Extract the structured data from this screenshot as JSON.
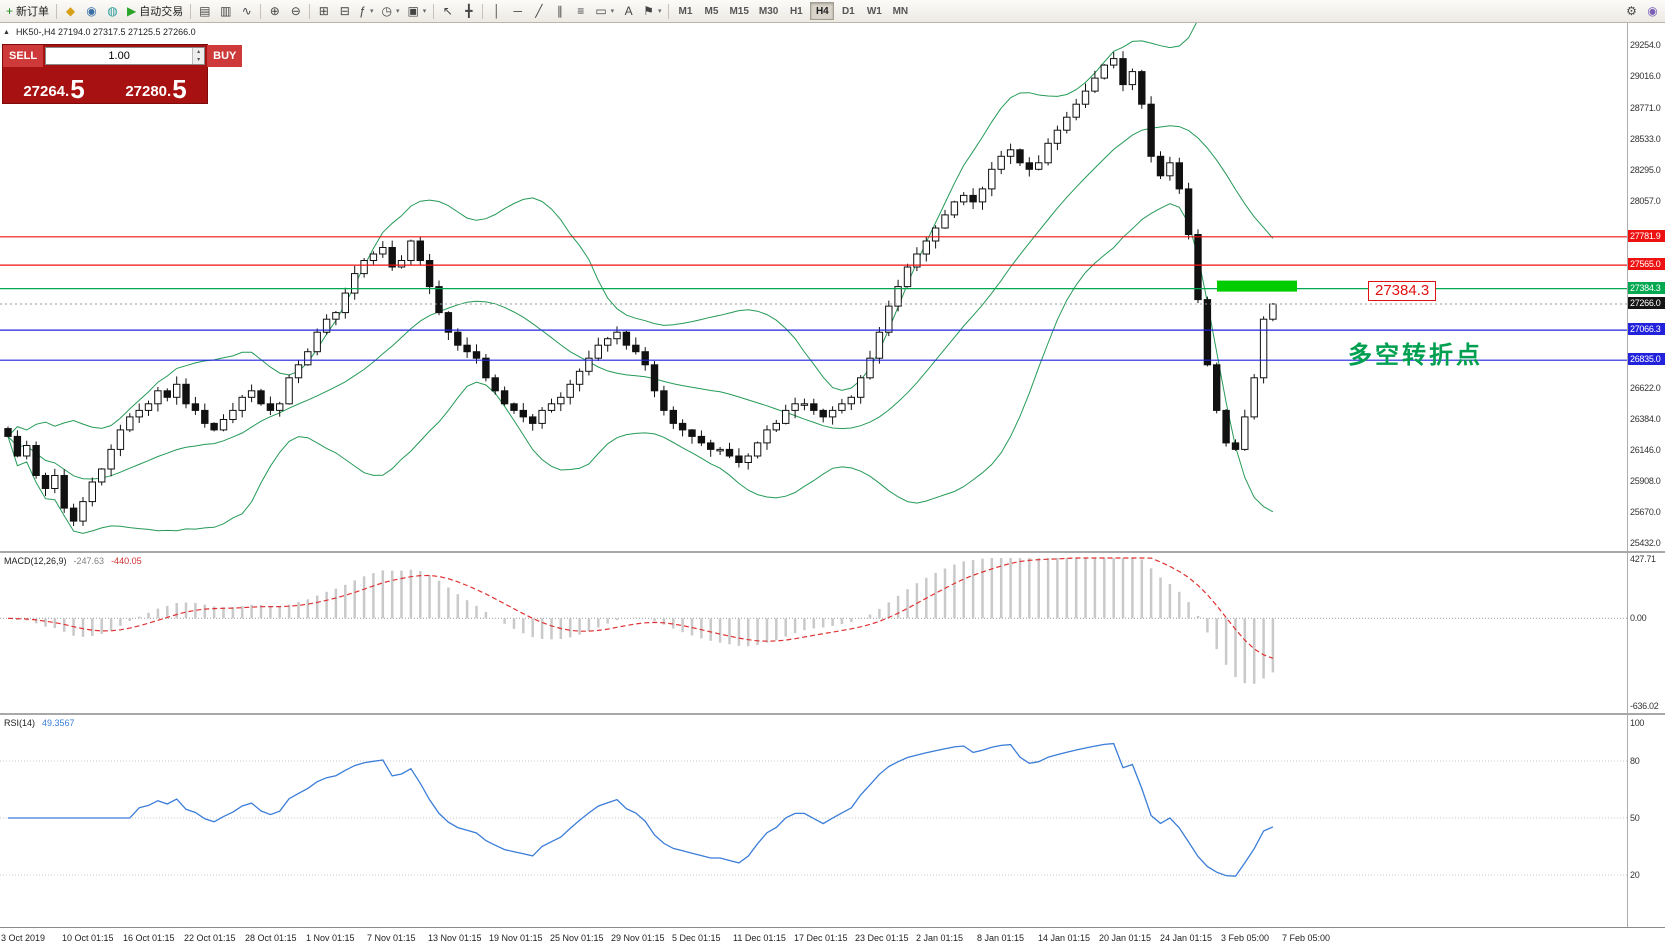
{
  "toolbar": {
    "buttons": [
      {
        "name": "new-order-button",
        "glyph": "+",
        "glyph_color": "#1f8f1f",
        "label": "新订单"
      },
      {
        "sep": true
      },
      {
        "name": "favorites-icon",
        "glyph": "◆",
        "glyph_color": "#d8a019"
      },
      {
        "name": "market-watch-icon",
        "glyph": "◉",
        "glyph_color": "#3a6ea5"
      },
      {
        "name": "data-window-icon",
        "glyph": "◍",
        "glyph_color": "#2a9a9a"
      },
      {
        "name": "auto-trading-button",
        "glyph": "▶",
        "glyph_color": "#2aa52a",
        "label": "自动交易"
      },
      {
        "sep": true
      },
      {
        "name": "bar-chart-button",
        "glyph": "▤"
      },
      {
        "name": "candlestick-chart-button",
        "glyph": "▥"
      },
      {
        "name": "line-chart-button",
        "glyph": "∿"
      },
      {
        "sep": true
      },
      {
        "name": "zoom-in-button",
        "glyph": "⊕"
      },
      {
        "name": "zoom-out-button",
        "glyph": "⊖"
      },
      {
        "sep": true
      },
      {
        "name": "tile-windows-button",
        "glyph": "⊞"
      },
      {
        "name": "auto-scroll-button",
        "glyph": "⊟"
      },
      {
        "name": "indicators-button",
        "glyph": "ƒ",
        "dd": true
      },
      {
        "name": "periods-button",
        "glyph": "◷",
        "dd": true
      },
      {
        "name": "templates-button",
        "glyph": "▣",
        "dd": true
      },
      {
        "sep": true
      },
      {
        "name": "cursor-button",
        "glyph": "↖"
      },
      {
        "name": "crosshair-button",
        "glyph": "╋"
      },
      {
        "sep": true
      },
      {
        "name": "vertical-line-button",
        "glyph": "│"
      },
      {
        "name": "horizontal-line-button",
        "glyph": "─"
      },
      {
        "name": "trendline-button",
        "glyph": "╱"
      },
      {
        "name": "channel-button",
        "glyph": "∥"
      },
      {
        "name": "fibonacci-button",
        "glyph": "≡"
      },
      {
        "name": "shapes-button",
        "glyph": "▭",
        "dd": true
      },
      {
        "name": "text-button",
        "glyph": "A"
      },
      {
        "name": "arrows-button",
        "glyph": "⚑",
        "dd": true
      },
      {
        "sep": true
      }
    ],
    "timeframes": [
      "M1",
      "M5",
      "M15",
      "M30",
      "H1",
      "H4",
      "D1",
      "W1",
      "MN"
    ],
    "active_timeframe": "H4",
    "right_buttons": [
      {
        "name": "settings-button",
        "glyph": "⚙"
      },
      {
        "name": "help-button",
        "glyph": "◉",
        "glyph_color": "#7a5fb5"
      }
    ]
  },
  "chart": {
    "shift_marker": "▲",
    "title_line": "HK50-,H4 27194.0 27317.5 27125.5 27266.0"
  },
  "trade_panel": {
    "sell_label": "SELL",
    "buy_label": "BUY",
    "volume": "1.00",
    "bid_main": "27264.",
    "bid_big": "5",
    "ask_main": "27280.",
    "ask_big": "5"
  },
  "levels": {
    "pivot": 27384.3,
    "current": 27266.0,
    "pivot_label": "27384.3",
    "annotation": "多空转折点",
    "lines": [
      {
        "name": "resistance-1",
        "price": 27781.9,
        "color": "#ee1111"
      },
      {
        "name": "resistance-2",
        "price": 27565.0,
        "color": "#ee1111"
      },
      {
        "name": "pivot-line",
        "price": 27384.3,
        "color": "#00a84f"
      },
      {
        "name": "support-1",
        "price": 27066.3,
        "color": "#2222dd"
      },
      {
        "name": "support-2",
        "price": 26835.0,
        "color": "#2222dd"
      }
    ]
  },
  "axis": {
    "price_ticks": [
      29254.0,
      29016.0,
      28771.0,
      28533.0,
      28295.0,
      28057.0,
      26622.0,
      26384.0,
      26146.0,
      25908.0,
      25670.0,
      25432.0
    ],
    "price_labels": [
      {
        "text": "27781.9",
        "price": 27781.9,
        "color": "#ee1111"
      },
      {
        "text": "27565.0",
        "price": 27565.0,
        "color": "#ee1111"
      },
      {
        "text": "27384.3",
        "price": 27384.3,
        "color": "#00a84f"
      },
      {
        "text": "27266.0",
        "price": 27266.0,
        "color": "#151515"
      },
      {
        "text": "27066.3",
        "price": 27066.3,
        "color": "#2222dd"
      },
      {
        "text": "26835.0",
        "price": 26835.0,
        "color": "#2222dd"
      }
    ],
    "macd_ticks": [
      "427.71",
      "0.00",
      "-636.02"
    ],
    "rsi_ticks": [
      "100",
      "80",
      "50",
      "20"
    ]
  },
  "indicators": {
    "macd_label": "MACD(12,26,9)",
    "macd_value": "-247.63",
    "macd_signal": "-440.05",
    "rsi_label": "RSI(14)",
    "rsi_value": "49.3567"
  },
  "colors": {
    "bollinger": "#259a57",
    "macd_hist": "#c9c9c9",
    "macd_signal": "#e03232",
    "rsi": "#3b7dd8",
    "highlight": "#00cc00",
    "candle_up": "#ffffff",
    "candle_down": "#111111"
  },
  "chart_data": {
    "type": "candlestick",
    "symbol": "HK50-",
    "period": "H4",
    "current_ohlc": {
      "open": 27194.0,
      "high": 27317.5,
      "low": 27125.5,
      "close": 27266.0
    },
    "closes": [
      26250,
      26100,
      26180,
      25950,
      25850,
      25950,
      25700,
      25600,
      25750,
      25900,
      26000,
      26150,
      26300,
      26400,
      26450,
      26500,
      26600,
      26550,
      26650,
      26500,
      26450,
      26350,
      26300,
      26380,
      26450,
      26550,
      26600,
      26500,
      26450,
      26500,
      26700,
      26800,
      26900,
      27050,
      27150,
      27200,
      27350,
      27500,
      27600,
      27650,
      27700,
      27550,
      27600,
      27750,
      27600,
      27400,
      27200,
      27050,
      26950,
      26900,
      26850,
      26700,
      26600,
      26500,
      26450,
      26400,
      26350,
      26450,
      26500,
      26550,
      26650,
      26750,
      26850,
      26950,
      27000,
      27050,
      26950,
      26900,
      26800,
      26600,
      26450,
      26350,
      26300,
      26250,
      26200,
      26150,
      26150,
      26100,
      26050,
      26100,
      26200,
      26300,
      26350,
      26450,
      26500,
      26500,
      26450,
      26400,
      26450,
      26500,
      26550,
      26700,
      26850,
      27050,
      27250,
      27400,
      27550,
      27650,
      27750,
      27850,
      27950,
      28050,
      28100,
      28050,
      28150,
      28300,
      28400,
      28450,
      28350,
      28300,
      28350,
      28500,
      28600,
      28700,
      28800,
      28900,
      29000,
      29100,
      29150,
      28950,
      29050,
      28800,
      28400,
      28250,
      28350,
      28150,
      27800,
      27300,
      26800,
      26450,
      26200,
      26150,
      26400,
      26700,
      27150,
      27266
    ],
    "bollinger": {
      "period": 20,
      "deviation": 2
    },
    "macd": {
      "fast": 12,
      "slow": 26,
      "signal": 9,
      "value": -247.63,
      "signal_value": -440.05,
      "scale_max": 427.71,
      "scale_min": -636.02
    },
    "rsi": {
      "period": 14,
      "value": 49.3567,
      "levels": [
        80,
        50,
        20
      ],
      "scale": [
        0,
        100
      ]
    },
    "x_labels": [
      "3 Oct 2019",
      "10 Oct 01:15",
      "16 Oct 01:15",
      "22 Oct 01:15",
      "28 Oct 01:15",
      "1 Nov 01:15",
      "7 Nov 01:15",
      "13 Nov 01:15",
      "19 Nov 01:15",
      "25 Nov 01:15",
      "29 Nov 01:15",
      "5 Dec 01:15",
      "11 Dec 01:15",
      "17 Dec 01:15",
      "23 Dec 01:15",
      "2 Jan 01:15",
      "8 Jan 01:15",
      "14 Jan 01:15",
      "20 Jan 01:15",
      "24 Jan 01:15",
      "3 Feb 05:00",
      "7 Feb 05:00"
    ]
  }
}
